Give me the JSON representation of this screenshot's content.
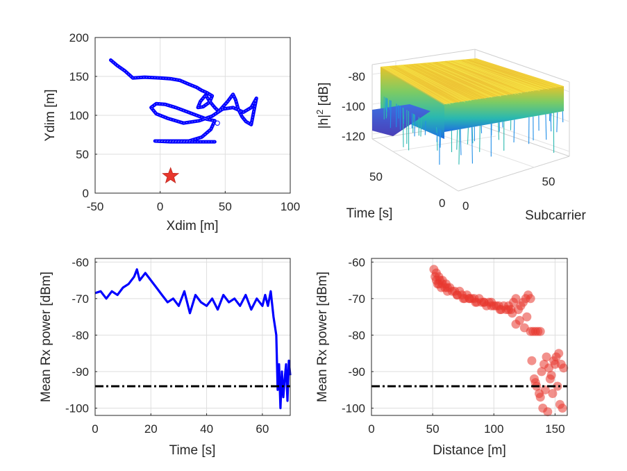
{
  "chart_data": [
    {
      "type": "line",
      "xlabel": "Xdim [m]",
      "ylabel": "Ydim [m]",
      "xlim": [
        -50,
        100
      ],
      "ylim": [
        0,
        200
      ],
      "xticks": [
        "-50",
        "0",
        "50",
        "100"
      ],
      "yticks": [
        "0",
        "50",
        "100",
        "150",
        "200"
      ],
      "grid": true,
      "line_color": "#0000ff",
      "marker_color": "#e8372d",
      "series": [
        {
          "x": [
            -38,
            -33,
            -27,
            -21,
            -12,
            0,
            8,
            15,
            22,
            28,
            32,
            36,
            40,
            38,
            33,
            29,
            31,
            35,
            38,
            42,
            45,
            52,
            56,
            58,
            60,
            63,
            66,
            70,
            74,
            70,
            64,
            56,
            48,
            40,
            30,
            18,
            6,
            -3,
            -7,
            -3,
            4,
            12,
            20,
            28,
            36,
            42,
            39,
            32,
            22,
            12,
            2,
            -4,
            8,
            20,
            30,
            38,
            42
          ],
          "y": [
            171,
            164,
            157,
            148,
            149,
            148,
            147,
            145,
            140,
            136,
            132,
            129,
            125,
            117,
            111,
            110,
            118,
            126,
            118,
            110,
            105,
            118,
            127,
            120,
            108,
            98,
            92,
            88,
            122,
            110,
            104,
            110,
            108,
            99,
            93,
            90,
            96,
            102,
            110,
            115,
            114,
            110,
            105,
            100,
            95,
            93,
            82,
            72,
            67,
            67,
            67,
            67,
            66,
            66,
            66,
            66,
            66
          ]
        }
      ],
      "start_marker": {
        "x": 44,
        "y": 90
      },
      "station": {
        "x": 8,
        "y": 22
      }
    },
    {
      "type": "surface",
      "xlabel": "Subcarrier",
      "ylabel": "Time [s]",
      "zlabel_base": "|h|",
      "zlabel_exp": "2",
      "zlabel_unit": " [dB]",
      "zlim": [
        -130,
        -75
      ],
      "zticks": [
        "-80",
        "-100",
        "-120"
      ],
      "xticks": [
        "0",
        "50"
      ],
      "yticks": [
        "0",
        "50"
      ],
      "typical_level": -82,
      "fade_floor": -125,
      "colormap": [
        "#3d2ea8",
        "#1f8ee8",
        "#2ab8b0",
        "#7ccb64",
        "#e6c32a",
        "#f5e43a"
      ]
    },
    {
      "type": "line",
      "xlabel": "Time [s]",
      "ylabel": "Mean Rx power [dBm]",
      "xlim": [
        0,
        70
      ],
      "ylim": [
        -102,
        -59
      ],
      "xticks": [
        "0",
        "20",
        "40",
        "60"
      ],
      "yticks": [
        "-60",
        "-70",
        "-80",
        "-90",
        "-100"
      ],
      "grid": true,
      "line_color": "#0000ff",
      "threshold": -94,
      "threshold_color": "#000000",
      "series": [
        {
          "x": [
            0,
            2,
            4,
            6,
            8,
            10,
            12,
            14,
            15,
            16,
            17,
            18,
            20,
            22,
            24,
            26,
            28,
            30,
            32,
            34,
            36,
            38,
            40,
            42,
            44,
            46,
            48,
            50,
            52,
            54,
            56,
            58,
            60,
            61,
            62,
            63,
            64,
            65,
            65.5,
            66,
            66.5,
            67,
            67.5,
            68,
            68.5,
            69,
            69.5,
            70
          ],
          "y": [
            -68.5,
            -68,
            -70,
            -68,
            -69,
            -67,
            -66,
            -64,
            -62,
            -65,
            -64,
            -63,
            -65,
            -67,
            -69,
            -71,
            -70,
            -72,
            -68,
            -74,
            -69,
            -71,
            -72,
            -70,
            -73,
            -69,
            -71,
            -70,
            -72,
            -69,
            -73,
            -70,
            -72,
            -69,
            -72,
            -68,
            -75,
            -80,
            -95,
            -88,
            -100,
            -90,
            -97,
            -92,
            -88,
            -98,
            -87,
            -91
          ]
        }
      ]
    },
    {
      "type": "scatter",
      "xlabel": "Distance [m]",
      "ylabel": "Mean Rx power [dBm]",
      "xlim": [
        0,
        160
      ],
      "ylim": [
        -102,
        -59
      ],
      "xticks": [
        "0",
        "50",
        "100",
        "150"
      ],
      "yticks": [
        "-60",
        "-70",
        "-80",
        "-90",
        "-100"
      ],
      "grid": true,
      "marker_color": "#e8372d",
      "threshold": -94,
      "threshold_color": "#000000",
      "series": [
        {
          "x": [
            51,
            52,
            53,
            53,
            54,
            55,
            56,
            57,
            58,
            58,
            60,
            61,
            62,
            64,
            66,
            68,
            70,
            72,
            74,
            76,
            78,
            80,
            82,
            84,
            86,
            88,
            90,
            92,
            94,
            96,
            98,
            100,
            102,
            104,
            106,
            108,
            110,
            112,
            114,
            116,
            118,
            120,
            122,
            124,
            126,
            128,
            130,
            55,
            62,
            70,
            80,
            92,
            105,
            115,
            121,
            127,
            112,
            98,
            85,
            75,
            118,
            125,
            130,
            132,
            134,
            136,
            138,
            131,
            133,
            135,
            137,
            139,
            141,
            143,
            145,
            147,
            149,
            151,
            153,
            155,
            157,
            138,
            140,
            144,
            148,
            152,
            154,
            134,
            150,
            146,
            142,
            156
          ],
          "y": [
            -62,
            -64,
            -63,
            -65,
            -66,
            -64,
            -65,
            -67,
            -66,
            -65,
            -67,
            -66,
            -68,
            -67,
            -68,
            -68,
            -69,
            -68,
            -69,
            -70,
            -69,
            -70,
            -70,
            -70,
            -71,
            -70,
            -71,
            -71,
            -72,
            -71,
            -71,
            -72,
            -72,
            -72,
            -73,
            -72,
            -73,
            -72,
            -73,
            -71,
            -70,
            -73,
            -72,
            -71,
            -70,
            -69,
            -70,
            -66,
            -67,
            -69,
            -70,
            -71,
            -73,
            -74,
            -76,
            -75,
            -73,
            -72,
            -71,
            -70,
            -77,
            -78,
            -79,
            -79,
            -79,
            -79,
            -79,
            -87,
            -92,
            -94,
            -96,
            -90,
            -88,
            -86,
            -89,
            -91,
            -87,
            -86,
            -85,
            -88,
            -89,
            -97,
            -100,
            -101,
            -96,
            -94,
            -99,
            -93,
            -88,
            -92,
            -95,
            -100
          ]
        }
      ]
    }
  ]
}
